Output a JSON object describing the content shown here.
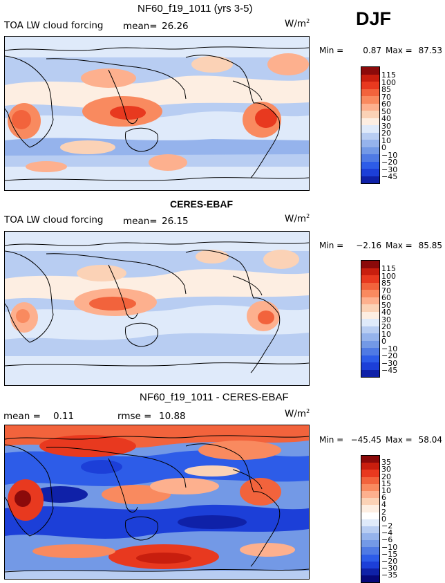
{
  "season": "DJF",
  "colors": {
    "cb1": [
      "#8b0a0a",
      "#c81e0e",
      "#e8391f",
      "#f2633c",
      "#f98a5f",
      "#fdb08e",
      "#fbd2b6",
      "#fdeee2",
      "#dfeafa",
      "#b8cdf2",
      "#95b3ec",
      "#7399e6",
      "#4f7ae4",
      "#2d5ce8",
      "#1c3fd8",
      "#0f21a8",
      "#06087b"
    ],
    "cb3": [
      "#8b0a0a",
      "#c81e0e",
      "#e8391f",
      "#f2633c",
      "#f98a5f",
      "#fdb08e",
      "#fbd2b6",
      "#fdeee2",
      "#dfeafa",
      "#b8cdf2",
      "#95b3ec",
      "#7399e6",
      "#4f7ae4",
      "#2d5ce8",
      "#1c3fd8",
      "#0f21a8",
      "#06087b"
    ]
  },
  "chart_data": [
    {
      "type": "heatmap",
      "title": "NF60_f19_1011 (yrs 3-5)",
      "variable": "TOA LW cloud forcing",
      "mean_label": "mean=",
      "mean": "26.26",
      "units": "W/m",
      "units_exp": "2",
      "min_label": "Min =",
      "min": "0.87",
      "max_label": "Max =",
      "max": "87.53",
      "colorbar_levels": [
        "115",
        "100",
        "85",
        "70",
        "60",
        "50",
        "40",
        "30",
        "20",
        "10",
        "0",
        "−10",
        "−20",
        "−30",
        "−45"
      ]
    },
    {
      "type": "heatmap",
      "title": "CERES-EBAF",
      "variable": "TOA LW cloud forcing",
      "mean_label": "mean=",
      "mean": "26.15",
      "units": "W/m",
      "units_exp": "2",
      "min_label": "Min =",
      "min": "−2.16",
      "max_label": "Max =",
      "max": "85.85",
      "colorbar_levels": [
        "115",
        "100",
        "85",
        "70",
        "60",
        "50",
        "40",
        "30",
        "20",
        "10",
        "0",
        "−10",
        "−20",
        "−30",
        "−45"
      ]
    },
    {
      "type": "heatmap",
      "title": "NF60_f19_1011 - CERES-EBAF",
      "mean_label": "mean =",
      "mean": "0.11",
      "rmse_label": "rmse =",
      "rmse": "10.88",
      "units": "W/m",
      "units_exp": "2",
      "min_label": "Min =",
      "min": "−45.45",
      "max_label": "Max =",
      "max": "58.04",
      "colorbar_levels": [
        "35",
        "30",
        "20",
        "15",
        "10",
        "6",
        "4",
        "2",
        "0",
        "−2",
        "−4",
        "−6",
        "−10",
        "−15",
        "−20",
        "−30",
        "−35"
      ]
    }
  ]
}
